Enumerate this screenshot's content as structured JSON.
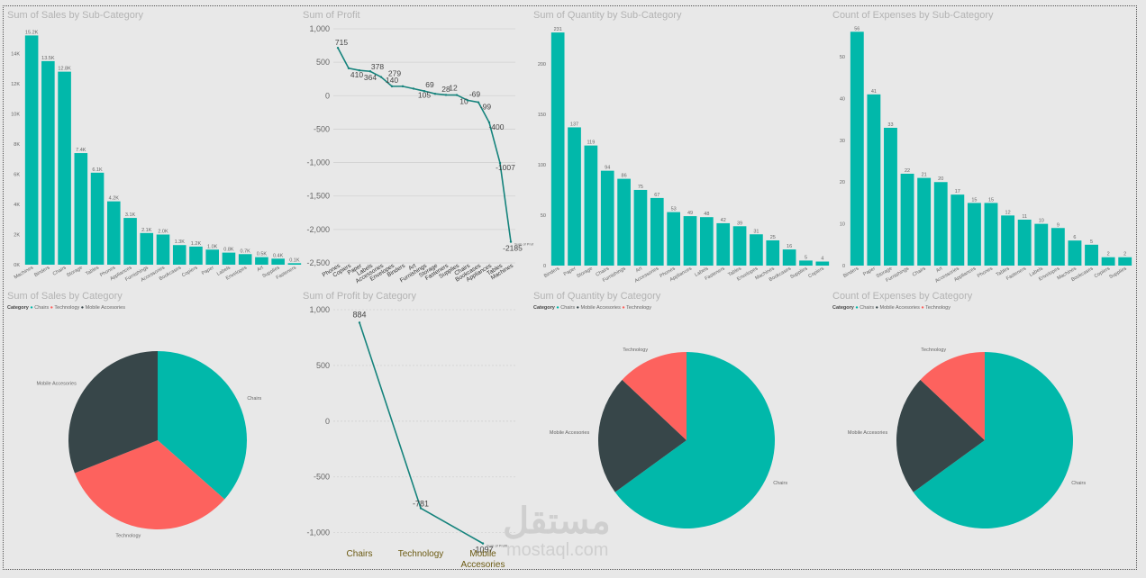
{
  "colors": {
    "teal": "#01b8aa",
    "dark": "#374649",
    "red": "#fd625e",
    "line": "#15837c",
    "title": "#b3b3b3",
    "text": "#666666"
  },
  "chart_data": [
    {
      "id": "sales_subcat",
      "type": "bar",
      "title": "Sum of Sales by Sub-Category",
      "categories": [
        "Machines",
        "Binders",
        "Chairs",
        "Storage",
        "Tables",
        "Phones",
        "Appliances",
        "Furnishings",
        "Accessories",
        "Bookcases",
        "Copiers",
        "Paper",
        "Labels",
        "Envelopes",
        "Art",
        "Supplies",
        "Fasteners"
      ],
      "values": [
        15.2,
        13.5,
        12.8,
        7.4,
        6.1,
        4.2,
        3.1,
        2.1,
        2.0,
        1.3,
        1.2,
        1.0,
        0.8,
        0.7,
        0.5,
        0.4,
        0.1
      ],
      "data_labels": [
        "15.2K",
        "13.5K",
        "12.8K",
        "7.4K",
        "6.1K",
        "4.2K",
        "3.1K",
        "2.1K",
        "2.0K",
        "1.3K",
        "1.2K",
        "1.0K",
        "0.8K",
        "0.7K",
        "0.5K",
        "0.4K",
        "0.1K"
      ],
      "ylim": [
        0,
        16
      ],
      "y_ticks": [
        0,
        2,
        4,
        6,
        8,
        10,
        12,
        14
      ],
      "y_tick_labels": [
        "0K",
        "2K",
        "4K",
        "6K",
        "8K",
        "10K",
        "12K",
        "14K"
      ]
    },
    {
      "id": "profit_subcat",
      "type": "line",
      "title": "Sum of Profit",
      "categories": [
        "Phones",
        "Copiers",
        "Paper",
        "Labels",
        "Accessories",
        "Envelopes",
        "Binders",
        "Art",
        "Furnishings",
        "Storage",
        "Fasteners",
        "Supplies",
        "Chairs",
        "Bookcases",
        "Appliances",
        "Tables",
        "Machines"
      ],
      "values": [
        715,
        410,
        378,
        364,
        279,
        140,
        140,
        105,
        69,
        28,
        12,
        10,
        -69,
        -99,
        -400,
        -1007,
        -2185
      ],
      "data_labels": [
        "715",
        "410",
        "378",
        "364",
        "279",
        "140",
        "",
        "105",
        "69",
        "28",
        "12",
        "10",
        "-69",
        "-99",
        "-400",
        "-1007",
        "-2185"
      ],
      "ylim": [
        -2500,
        1000
      ],
      "y_ticks": [
        -2500,
        -2000,
        -1500,
        -1000,
        -500,
        0,
        500,
        1000
      ],
      "y_tick_labels": [
        "-2,500",
        "-2,000",
        "-1,500",
        "-1,000",
        "-500",
        "0",
        "500",
        "1,000"
      ],
      "end_label": "Sum of Profit"
    },
    {
      "id": "qty_subcat",
      "type": "bar",
      "title": "Sum of Quantity by Sub-Category",
      "categories": [
        "Binders",
        "Paper",
        "Storage",
        "Chairs",
        "Furnishings",
        "Art",
        "Accessories",
        "Phones",
        "Appliances",
        "Labels",
        "Fasteners",
        "Tables",
        "Envelopes",
        "Machines",
        "Bookcases",
        "Supplies",
        "Copiers"
      ],
      "values": [
        231,
        137,
        119,
        94,
        86,
        75,
        67,
        53,
        49,
        48,
        42,
        39,
        31,
        25,
        16,
        5,
        4
      ],
      "data_labels": [
        "231",
        "137",
        "119",
        "94",
        "86",
        "75",
        "67",
        "53",
        "49",
        "48",
        "42",
        "39",
        "31",
        "25",
        "16",
        "5",
        "4"
      ],
      "ylim": [
        0,
        240
      ],
      "y_ticks": [
        0,
        50,
        100,
        150,
        200
      ],
      "y_tick_labels": [
        "0",
        "50",
        "100",
        "150",
        "200"
      ]
    },
    {
      "id": "exp_subcat",
      "type": "bar",
      "title": "Count of Expenses by Sub-Category",
      "categories": [
        "Binders",
        "Paper",
        "Storage",
        "Furnishings",
        "Chairs",
        "Art",
        "Accessories",
        "Appliances",
        "Phones",
        "Tables",
        "Fasteners",
        "Labels",
        "Envelopes",
        "Machines",
        "Bookcases",
        "Copiers",
        "Supplies"
      ],
      "values": [
        56,
        41,
        33,
        22,
        21,
        20,
        17,
        15,
        15,
        12,
        11,
        10,
        9,
        6,
        5,
        2,
        2
      ],
      "data_labels": [
        "56",
        "41",
        "33",
        "22",
        "21",
        "20",
        "17",
        "15",
        "15",
        "12",
        "11",
        "10",
        "9",
        "6",
        "5",
        "2",
        "2"
      ],
      "ylim": [
        0,
        58
      ],
      "y_ticks": [
        0,
        10,
        20,
        30,
        40,
        50
      ],
      "y_tick_labels": [
        "0",
        "10",
        "20",
        "30",
        "40",
        "50"
      ]
    },
    {
      "id": "sales_cat",
      "type": "pie",
      "title": "Sum of Sales by Category",
      "legend_title": "Category",
      "legend": [
        {
          "name": "Chairs",
          "color": "#01b8aa"
        },
        {
          "name": "Technology",
          "color": "#fd625e"
        },
        {
          "name": "Mobile Accesories",
          "color": "#374649"
        }
      ],
      "slices": [
        {
          "name": "Chairs",
          "value": 36.5,
          "color": "#01b8aa"
        },
        {
          "name": "Technology",
          "value": 32.5,
          "color": "#fd625e"
        },
        {
          "name": "Mobile Accesories",
          "value": 31,
          "color": "#374649"
        }
      ]
    },
    {
      "id": "profit_cat",
      "type": "line",
      "title": "Sum of Profit by Category",
      "categories": [
        "Chairs",
        "Technology",
        "Mobile Accesories"
      ],
      "values": [
        884,
        -781,
        -1097
      ],
      "data_labels": [
        "884",
        "-781",
        "-1097"
      ],
      "ylim": [
        -1100,
        1000
      ],
      "y_ticks": [
        -1000,
        -500,
        0,
        500,
        1000
      ],
      "y_tick_labels": [
        "-1,000",
        "-500",
        "0",
        "500",
        "1,000"
      ],
      "end_label": "Sum of Profit"
    },
    {
      "id": "qty_cat",
      "type": "pie",
      "title": "Sum of Quantity by Category",
      "legend_title": "Category",
      "legend": [
        {
          "name": "Chairs",
          "color": "#01b8aa"
        },
        {
          "name": "Mobile Accesories",
          "color": "#374649"
        },
        {
          "name": "Technology",
          "color": "#fd625e"
        }
      ],
      "slices": [
        {
          "name": "Chairs",
          "value": 65,
          "color": "#01b8aa"
        },
        {
          "name": "Mobile Accesories",
          "value": 22,
          "color": "#374649"
        },
        {
          "name": "Technology",
          "value": 13,
          "color": "#fd625e"
        }
      ]
    },
    {
      "id": "exp_cat",
      "type": "pie",
      "title": "Count of Expenses by Category",
      "legend_title": "Category",
      "legend": [
        {
          "name": "Chairs",
          "color": "#01b8aa"
        },
        {
          "name": "Mobile Accesories",
          "color": "#374649"
        },
        {
          "name": "Technology",
          "color": "#fd625e"
        }
      ],
      "slices": [
        {
          "name": "Chairs",
          "value": 65,
          "color": "#01b8aa"
        },
        {
          "name": "Mobile Accesories",
          "value": 22,
          "color": "#374649"
        },
        {
          "name": "Technology",
          "value": 13,
          "color": "#fd625e"
        }
      ]
    }
  ],
  "watermark": {
    "arabic": "مستقل",
    "latin": "mostaql.com"
  }
}
